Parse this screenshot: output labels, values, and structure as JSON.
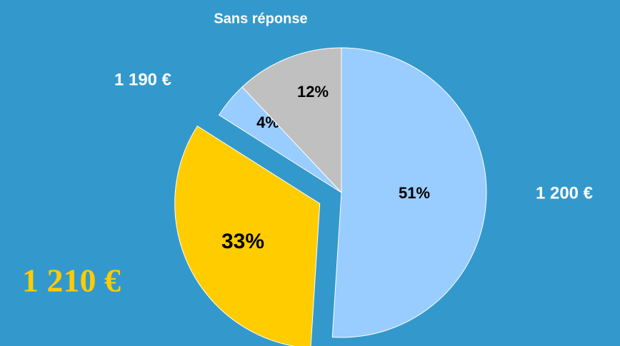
{
  "chart_data": {
    "type": "pie",
    "categories": [
      "1 200 €",
      "1 210 €",
      "1 190 €",
      "Sans réponse"
    ],
    "values": [
      51,
      33,
      4,
      12
    ],
    "value_labels": [
      "51%",
      "33%",
      "4%",
      "12%"
    ],
    "colors": [
      "#99ccff",
      "#ffcc00",
      "#99ccff",
      "#c0c0c0"
    ],
    "exploded": [
      false,
      true,
      false,
      false
    ]
  }
}
